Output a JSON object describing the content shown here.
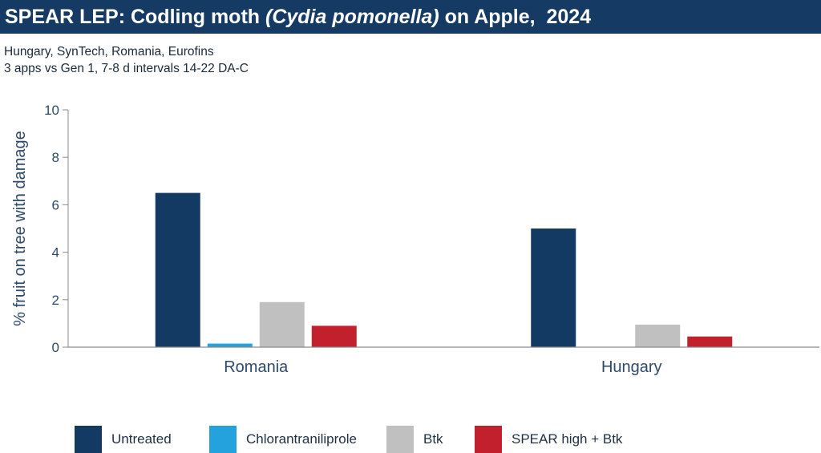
{
  "header": {
    "title_before": "SPEAR LEP: Codling moth ",
    "title_italic": "(Cydia pomonella)",
    "title_after": " on Apple,  2024",
    "subtitle_line1": "Hungary, SynTech, Romania, Eurofins",
    "subtitle_line2": "3 apps vs Gen 1, 7-8 d intervals 14-22 DA-C"
  },
  "colors": {
    "title_bg": "#153a63",
    "axis_text": "#2e4a6b"
  },
  "chart_data": {
    "type": "bar",
    "categories": [
      "Romania",
      "Hungary"
    ],
    "series": [
      {
        "name": "Untreated",
        "color": "#133a62",
        "values": [
          6.5,
          5.0
        ]
      },
      {
        "name": "Chlorantraniliprole",
        "color": "#23a2dd",
        "values": [
          0.15,
          0
        ]
      },
      {
        "name": "Btk",
        "color": "#c0c0c0",
        "values": [
          1.9,
          0.95
        ]
      },
      {
        "name": "SPEAR high + Btk",
        "color": "#c1202c",
        "values": [
          0.9,
          0.45
        ]
      }
    ],
    "ylabel": "% fruit on tree with damage",
    "ylim": [
      0,
      10
    ],
    "yticks": [
      0,
      2,
      4,
      6,
      8,
      10
    ],
    "grid": false,
    "legend_position": "bottom"
  }
}
